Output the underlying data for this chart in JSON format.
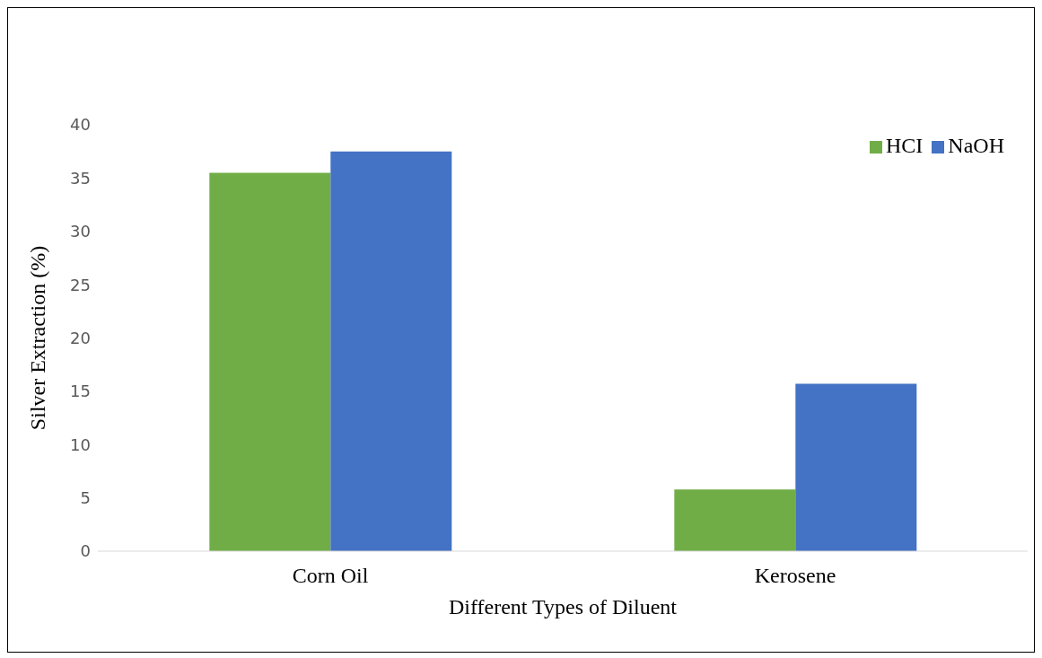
{
  "chart_data": {
    "type": "bar",
    "xlabel": "Different Types of Diluent",
    "ylabel": "Silver Extraction (%)",
    "categories": [
      "Corn Oil",
      "Kerosene"
    ],
    "series": [
      {
        "name": "HCI",
        "color": "#70ad47",
        "values": [
          35.5,
          5.8
        ]
      },
      {
        "name": "NaOH",
        "color": "#4472c4",
        "values": [
          37.5,
          15.7
        ]
      }
    ],
    "ylim": [
      0,
      40
    ],
    "yticks": [
      0,
      5,
      10,
      15,
      20,
      25,
      30,
      35,
      40
    ],
    "grid": false,
    "legend": "top right"
  }
}
